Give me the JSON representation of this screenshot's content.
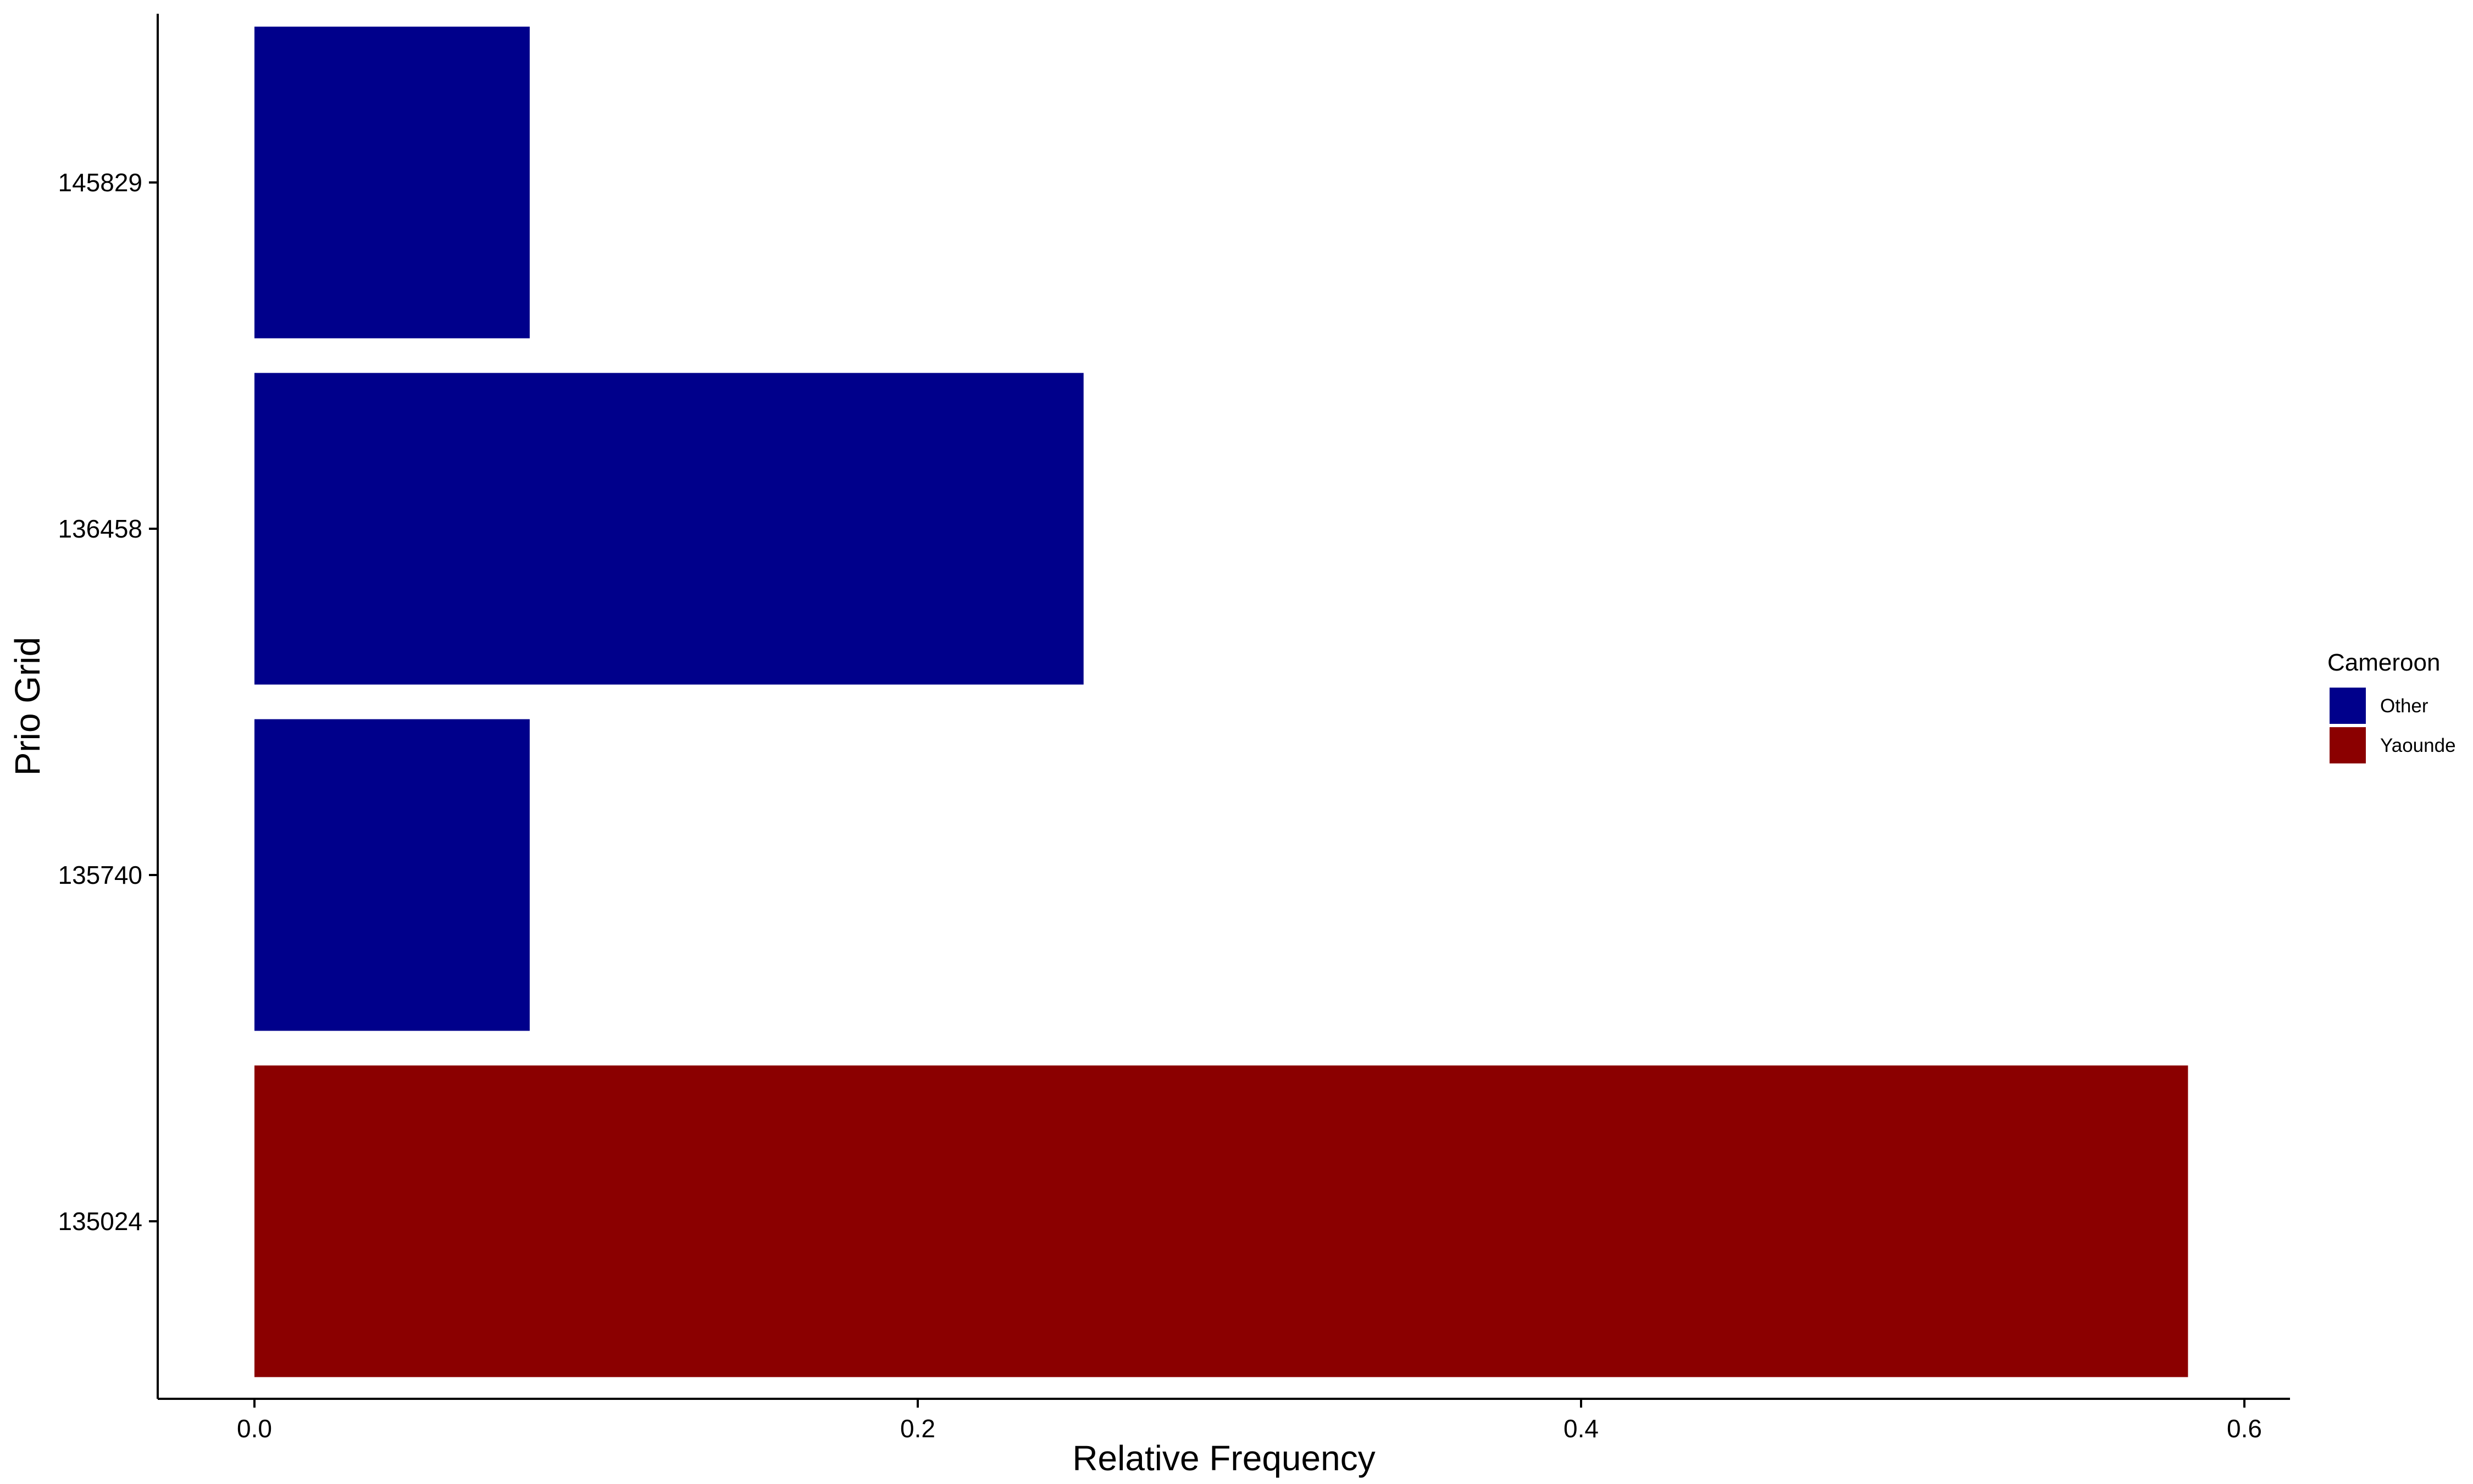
{
  "chart_data": {
    "type": "bar",
    "orientation": "horizontal",
    "xlabel": "Relative Frequency",
    "ylabel": "Prio Grid",
    "categories": [
      "135024",
      "135740",
      "136458",
      "145829"
    ],
    "values": [
      0.583,
      0.083,
      0.25,
      0.083
    ],
    "groups": [
      "Yaounde",
      "Other",
      "Other",
      "Other"
    ],
    "xlim": [
      0,
      0.6
    ],
    "x_ticks": [
      {
        "value": 0.0,
        "label": "0.0"
      },
      {
        "value": 0.2,
        "label": "0.2"
      },
      {
        "value": 0.4,
        "label": "0.4"
      },
      {
        "value": 0.6,
        "label": "0.6"
      }
    ],
    "grid": false,
    "legend": {
      "title": "Cameroon",
      "placement": "right",
      "entries": [
        {
          "label": "Other",
          "color": "#00008B"
        },
        {
          "label": "Yaounde",
          "color": "#8B0000"
        }
      ]
    }
  }
}
